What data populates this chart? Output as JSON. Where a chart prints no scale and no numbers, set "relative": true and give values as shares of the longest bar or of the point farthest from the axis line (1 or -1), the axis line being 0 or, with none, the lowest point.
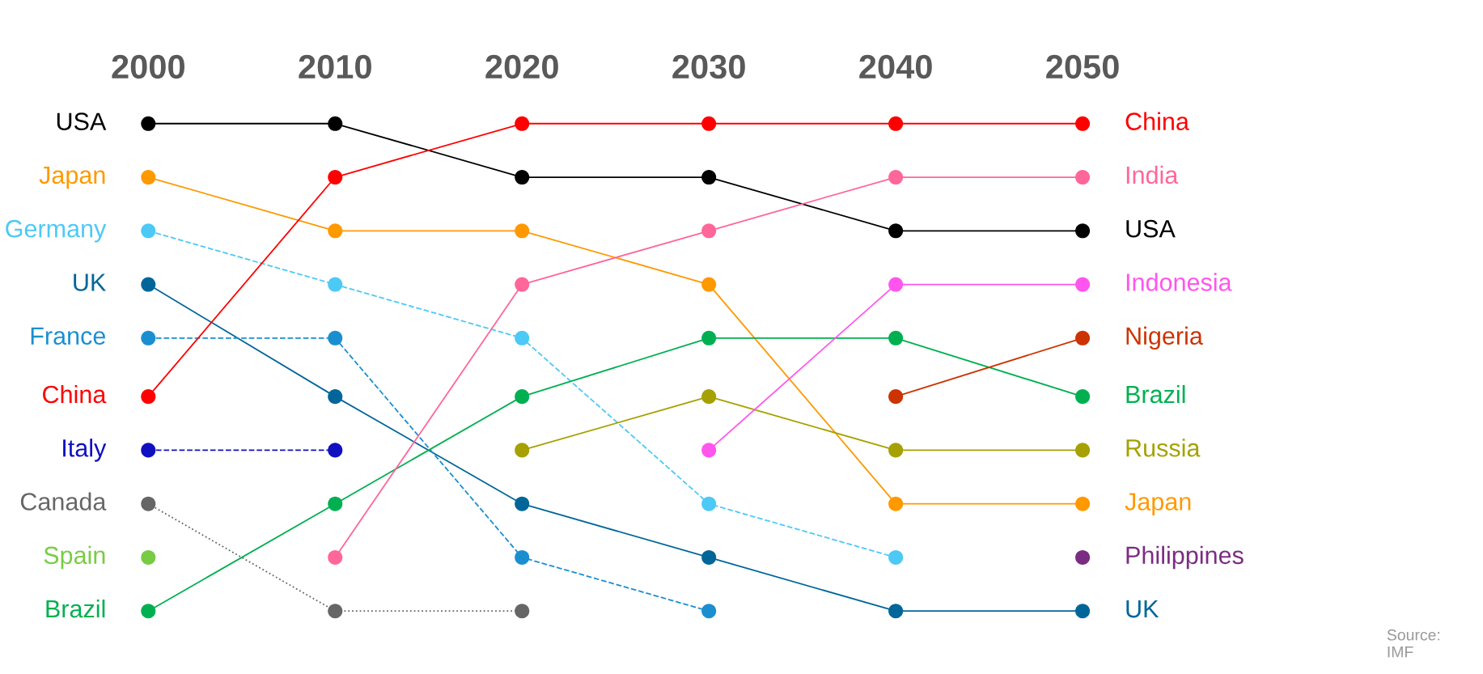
{
  "chart_data": {
    "type": "line",
    "relative": true,
    "x": [
      2000,
      2010,
      2020,
      2030,
      2040,
      2050
    ],
    "xlim": [
      2000,
      2050
    ],
    "xticks": [
      2000,
      2010,
      2020,
      2030,
      2040,
      2050
    ],
    "tick_labels": "x",
    "marker": "circle",
    "legend": false,
    "grid": false,
    "series": [
      {
        "name": "USA",
        "color": "#000000",
        "values": [
          1,
          1,
          0.89,
          0.89,
          0.78,
          0.78
        ]
      },
      {
        "name": "Japan",
        "color": "#ff9900",
        "values": [
          0.89,
          0.78,
          0.78,
          0.67,
          0.22,
          0.22
        ]
      },
      {
        "name": "Germany",
        "color": "#4dc9f6",
        "values": [
          0.78,
          0.67,
          0.56,
          0.22,
          0.11,
          null
        ],
        "line_style": "dashed"
      },
      {
        "name": "UK",
        "color": "#006699",
        "values": [
          0.67,
          0.44,
          0.22,
          0.11,
          0,
          0
        ]
      },
      {
        "name": "France",
        "color": "#1a8fd0",
        "values": [
          0.56,
          0.56,
          0.11,
          0,
          null,
          null
        ],
        "line_style": "dashed"
      },
      {
        "name": "China",
        "color": "#ff0000",
        "values": [
          0.44,
          0.89,
          1,
          1,
          1,
          1
        ]
      },
      {
        "name": "Italy",
        "color": "#1010c0",
        "values": [
          0.33,
          0.33,
          null,
          null,
          null,
          null
        ],
        "line_style": "dashed"
      },
      {
        "name": "Canada",
        "color": "#666666",
        "values": [
          0.22,
          0,
          0,
          null,
          null,
          null
        ],
        "line_style": "dotted"
      },
      {
        "name": "Spain",
        "color": "#77cc44",
        "values": [
          0.11,
          null,
          null,
          null,
          null,
          null
        ]
      },
      {
        "name": "Brazil",
        "color": "#00b050",
        "values": [
          0,
          0.22,
          0.44,
          0.56,
          0.56,
          0.44
        ]
      },
      {
        "name": "India",
        "color": "#ff6699",
        "values": [
          null,
          0.11,
          0.67,
          0.78,
          0.89,
          0.89
        ]
      },
      {
        "name": "Russia",
        "color": "#a6a000",
        "values": [
          null,
          null,
          0.33,
          0.44,
          0.33,
          0.33
        ]
      },
      {
        "name": "Indonesia",
        "color": "#ff55ee",
        "values": [
          null,
          null,
          null,
          0.33,
          0.67,
          0.67
        ]
      },
      {
        "name": "Nigeria",
        "color": "#cc3300",
        "values": [
          null,
          null,
          null,
          null,
          0.44,
          0.56
        ]
      },
      {
        "name": "Philippines",
        "color": "#7b2c82",
        "values": [
          null,
          null,
          null,
          null,
          null,
          0.11
        ]
      }
    ],
    "annotations": [
      "Source:\nIMF"
    ]
  }
}
